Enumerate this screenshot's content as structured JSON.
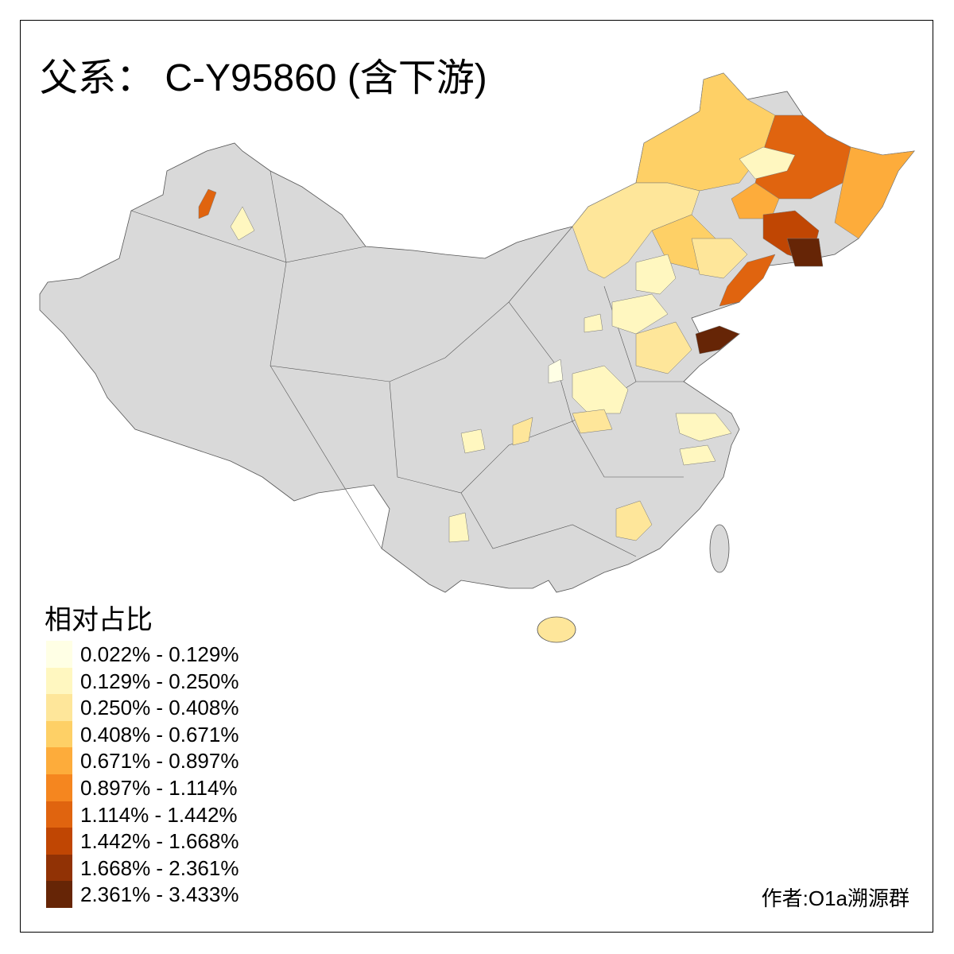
{
  "title": "父系： C-Y95860 (含下游)",
  "legend": {
    "title": "相对占比",
    "classes": [
      {
        "label": "0.022% - 0.129%",
        "color": "#FFFFE5"
      },
      {
        "label": "0.129% - 0.250%",
        "color": "#FFF7C0"
      },
      {
        "label": "0.250% - 0.408%",
        "color": "#FEE69A"
      },
      {
        "label": "0.408% - 0.671%",
        "color": "#FED066"
      },
      {
        "label": "0.671% - 0.897%",
        "color": "#FDAC3B"
      },
      {
        "label": "0.897% - 1.114%",
        "color": "#F5861F"
      },
      {
        "label": "1.114% - 1.442%",
        "color": "#E0640F"
      },
      {
        "label": "1.442% - 1.668%",
        "color": "#C04603"
      },
      {
        "label": "1.668% - 2.361%",
        "color": "#913205"
      },
      {
        "label": "2.361% - 3.433%",
        "color": "#662506"
      }
    ]
  },
  "no_data_color": "#D9D9D9",
  "author": "作者:O1a溯源群"
}
